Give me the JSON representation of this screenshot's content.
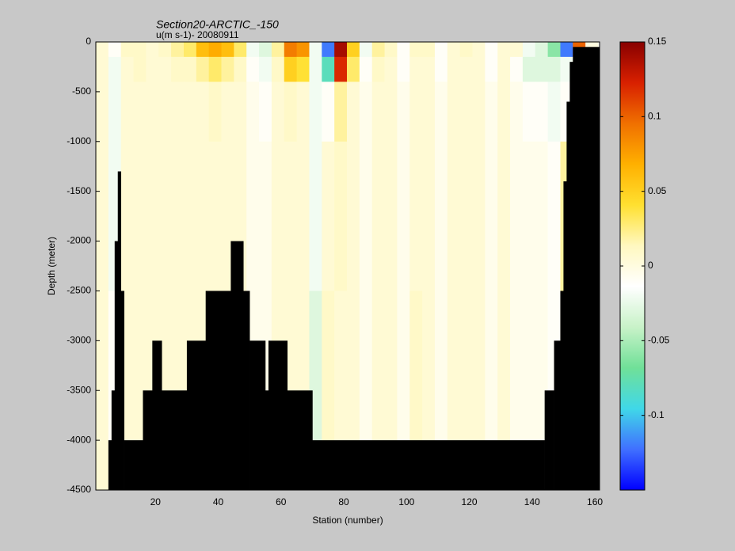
{
  "chart_data": {
    "type": "heatmap",
    "title": "Section20-ARCTIC_-150",
    "subtitle": "u(m s-1)- 20080911",
    "xlabel": "Station (number)",
    "ylabel": "Depth (meter)",
    "xlim": [
      1,
      161.5
    ],
    "ylim": [
      -4500,
      0
    ],
    "xticks": [
      20,
      40,
      60,
      80,
      100,
      120,
      140,
      160
    ],
    "yticks": [
      0,
      -500,
      -1000,
      -1500,
      -2000,
      -2500,
      -3000,
      -3500,
      -4000,
      -4500
    ],
    "x_edges": [
      1,
      5,
      9,
      13,
      17,
      21,
      25,
      29,
      33,
      37,
      41,
      45,
      49,
      53,
      57,
      61,
      65,
      69,
      73,
      77,
      81,
      85,
      89,
      93,
      97,
      101,
      105,
      109,
      113,
      117,
      121,
      125,
      129,
      133,
      137,
      141,
      145,
      149,
      153,
      157,
      161
    ],
    "y_edges": [
      0,
      -150,
      -400,
      -1000,
      -2500,
      -4500
    ],
    "values": [
      [
        0.005,
        -0.01,
        0.01,
        0.01,
        0.005,
        0.01,
        0.02,
        0.03,
        0.06,
        0.07,
        0.06,
        0.03,
        -0.02,
        -0.03,
        0.02,
        0.09,
        0.08,
        -0.02,
        -0.12,
        0.14,
        0.05,
        -0.02,
        0.02,
        0.01,
        -0.01,
        0.01,
        0.01,
        -0.01,
        0.005,
        0.01,
        0.005,
        -0.01,
        0.005,
        0.005,
        -0.02,
        -0.03,
        -0.06,
        -0.12,
        0.1,
        0
      ],
      [
        0.005,
        -0.02,
        0.005,
        0.01,
        0.005,
        0.005,
        0.01,
        0.01,
        0.02,
        0.03,
        0.02,
        0.01,
        -0.01,
        -0.02,
        0.01,
        0.05,
        0.04,
        -0.02,
        -0.08,
        0.12,
        0.03,
        -0.01,
        0.01,
        0.005,
        -0.01,
        0.005,
        0.005,
        -0.01,
        0.005,
        0.005,
        0.005,
        -0.01,
        0.005,
        -0.01,
        -0.03,
        -0.03,
        -0.03,
        -0.02,
        0.02,
        0
      ],
      [
        0.005,
        -0.02,
        0.005,
        0.005,
        0.005,
        0.005,
        0.005,
        0.005,
        0.005,
        0.01,
        0.005,
        0.005,
        -0.005,
        -0.01,
        0.005,
        0.01,
        0.005,
        -0.02,
        -0.01,
        0.02,
        0.005,
        -0.005,
        0.005,
        0.005,
        -0.005,
        0.005,
        0.005,
        -0.005,
        0.005,
        0.005,
        0.005,
        -0.005,
        0.005,
        -0.005,
        -0.01,
        -0.01,
        -0.02,
        -0.01,
        0.01,
        0
      ],
      [
        0.005,
        -0.02,
        0.005,
        0.005,
        0.005,
        0.005,
        0.005,
        0.005,
        0.005,
        0.005,
        0.005,
        0.005,
        -0.005,
        -0.005,
        0.005,
        0.005,
        0.005,
        -0.02,
        0.005,
        0.01,
        0.005,
        -0.005,
        0.005,
        0.005,
        -0.005,
        0.005,
        0.005,
        -0.005,
        0.005,
        0.005,
        0.005,
        -0.005,
        0.005,
        -0.005,
        -0.005,
        -0.005,
        -0.01,
        0.02,
        0.005,
        0
      ],
      [
        0.005,
        -0.01,
        0.005,
        0.005,
        0.005,
        0.005,
        0.005,
        0.005,
        0.005,
        0.005,
        0.005,
        0.005,
        -0.005,
        -0.005,
        0.005,
        0.005,
        0.005,
        -0.03,
        0.01,
        0.005,
        0.005,
        -0.005,
        0.005,
        0.005,
        -0.005,
        0.01,
        0.005,
        -0.005,
        0.005,
        0.005,
        0.005,
        -0.005,
        0.005,
        -0.005,
        -0.005,
        -0.005,
        -0.01,
        0.005,
        0.005,
        0
      ]
    ],
    "bottom": {
      "color": "#000000",
      "edges": [
        5,
        6,
        7,
        8,
        9,
        10,
        16,
        19,
        22,
        30,
        36,
        44,
        48,
        50,
        55,
        56,
        62,
        70,
        144,
        147,
        149,
        150,
        151,
        152,
        153,
        161.5
      ],
      "depths": [
        -4000,
        -3500,
        -2000,
        -1300,
        -2500,
        -4000,
        -3500,
        -3000,
        -3500,
        -3000,
        -2500,
        -2000,
        -2500,
        -3000,
        -3500,
        -3000,
        -3500,
        -4000,
        -3500,
        -3000,
        -2500,
        -1400,
        -600,
        -200,
        -50
      ]
    },
    "colorbar": {
      "lim": [
        -0.15,
        0.15
      ],
      "ticks": [
        0.15,
        0.1,
        0.05,
        0,
        -0.05,
        -0.1
      ],
      "colormap": [
        "#0000ff",
        "#4070ff",
        "#40d8e8",
        "#70e098",
        "#c8f2c8",
        "#ffffff",
        "#fff8c0",
        "#ffe030",
        "#ffb000",
        "#f07000",
        "#d82000",
        "#880000"
      ]
    }
  }
}
